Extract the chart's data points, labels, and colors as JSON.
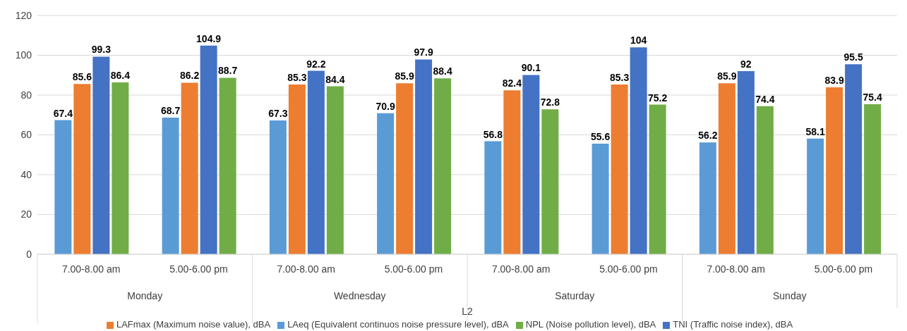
{
  "chart_data": {
    "type": "bar",
    "xlabel": "L2",
    "categories": [
      "7.00-8.00 am",
      "5.00-6.00 pm",
      "7.00-8.00 am",
      "5.00-6.00 pm",
      "7.00-8.00 am",
      "5.00-6.00 pm",
      "7.00-8.00 am",
      "5.00-6.00 pm"
    ],
    "annotations": [
      "Monday",
      "Wednesday",
      "Saturday",
      "Sunday"
    ],
    "series": [
      {
        "name": "LAeq (Equivalent continuos noise pressure level), dBA",
        "color": "#5b9bd5",
        "values": [
          67.4,
          68.7,
          67.3,
          70.9,
          56.8,
          55.6,
          56.2,
          58.1
        ]
      },
      {
        "name": "LAFmax (Maximum noise value), dBA",
        "color": "#ed7d31",
        "values": [
          85.6,
          86.2,
          85.3,
          85.9,
          82.4,
          85.3,
          85.9,
          83.9
        ]
      },
      {
        "name": "TNI (Traffic noise index), dBA",
        "color": "#4472c4",
        "values": [
          99.3,
          104.9,
          92.2,
          97.9,
          90.1,
          104,
          92,
          95.5
        ]
      },
      {
        "name": "NPL (Noise pollution level), dBA",
        "color": "#70ad47",
        "values": [
          86.4,
          88.7,
          84.4,
          88.4,
          72.8,
          75.2,
          74.4,
          75.4
        ]
      }
    ],
    "ylim": [
      0,
      120
    ],
    "yticks": [
      0,
      20,
      40,
      60,
      80,
      100,
      120
    ],
    "grid": "y",
    "legend": "bottom",
    "data_labels": true
  }
}
